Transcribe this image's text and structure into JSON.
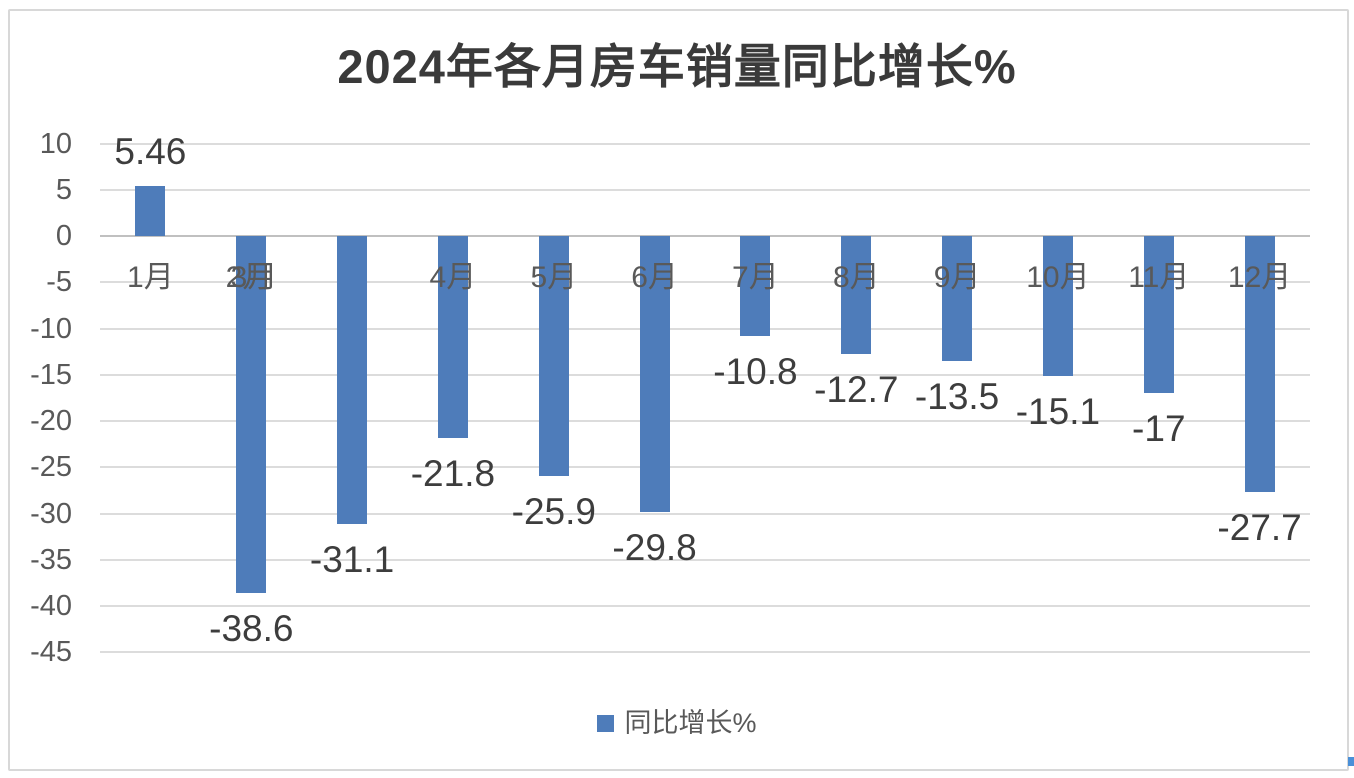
{
  "title": "2024年各月房车销量同比增长%",
  "legend": {
    "label": "同比增长%"
  },
  "chart_data": {
    "type": "bar",
    "title": "2024年各月房车销量同比增长%",
    "categories": [
      "1月",
      "2月",
      "3月",
      "4月",
      "5月",
      "6月",
      "7月",
      "8月",
      "9月",
      "10月",
      "11月",
      "12月"
    ],
    "series": [
      {
        "name": "同比增长%",
        "values": [
          5.46,
          -38.6,
          -31.1,
          -21.8,
          -25.9,
          -29.8,
          -10.8,
          -12.7,
          -13.5,
          -15.1,
          -17,
          -27.7
        ]
      }
    ],
    "data_labels": [
      "5.46",
      "-38.6",
      "-31.1",
      "-21.8",
      "-25.9",
      "-29.8",
      "-10.8",
      "-12.7",
      "-13.5",
      "-15.1",
      "-17",
      "-27.7"
    ],
    "xlabel": "",
    "ylabel": "",
    "yticks": [
      10,
      5,
      0,
      -5,
      -10,
      -15,
      -20,
      -25,
      -30,
      -35,
      -40,
      -45
    ],
    "ylim": [
      -45,
      10
    ],
    "grid": true,
    "legend_position": "bottom",
    "bar_color": "#4e7cba",
    "overlapping_x_labels": [
      "2月",
      "3月"
    ]
  },
  "colors": {
    "bar": "#4e7cba",
    "gridline": "#dcdcdc",
    "zero_line": "#c0c0c0",
    "axis_text": "#595959",
    "data_label_text": "#3d3d3d",
    "title_text": "#3a3a3a",
    "frame_border": "#d8d8d8",
    "corner_mark": "#4a90d8"
  }
}
